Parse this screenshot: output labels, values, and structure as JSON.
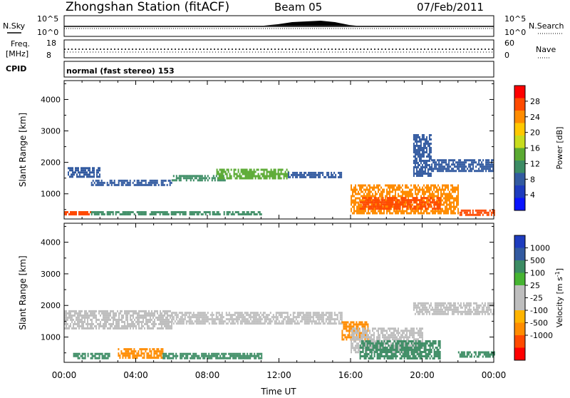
{
  "header": {
    "title": "Zhongshan Station (fitACF)",
    "beam": "Beam 05",
    "date": "07/Feb/2011"
  },
  "strip_labels": {
    "nsky": "N.Sky",
    "nsearch": "N.Search",
    "freq": "Freq.",
    "freq_unit": "[MHz]",
    "nave": "Nave",
    "cpid": "CPID",
    "cpid_text": "normal (fast stereo) 153",
    "noise_left_ticks": [
      "10^5",
      "10^0"
    ],
    "noise_right_ticks": [
      "10^5",
      "10^0"
    ],
    "freq_left_ticks": [
      "18",
      "8"
    ],
    "nave_right_ticks": [
      "60",
      "0"
    ]
  },
  "colorbars": {
    "power": {
      "label": "Power [dB]",
      "ticks": [
        "28",
        "24",
        "20",
        "16",
        "12",
        "8",
        "4"
      ],
      "colors": [
        "#ff0000",
        "#ff4a00",
        "#ff8c00",
        "#ffc800",
        "#c8dc1e",
        "#5aaa32",
        "#3c8c64",
        "#325aa0",
        "#1e3cbe",
        "#0a14ff"
      ]
    },
    "velocity": {
      "label": "Velocity [m s",
      "label_sup": "-1",
      "label_end": "]",
      "ticks": [
        "1000",
        "500",
        "100",
        "25",
        "-25",
        "-100",
        "-500",
        "-1000"
      ],
      "colors": [
        "#1e3cbe",
        "#325aa0",
        "#3c8c64",
        "#46b432",
        "#bebebe",
        "#bebebe",
        "#ffb400",
        "#ff8c00",
        "#ff4a00",
        "#ff0000"
      ]
    }
  },
  "chart_data": [
    {
      "type": "heatmap",
      "panel": "power",
      "ylabel": "Slant Range [km]",
      "xlabel": "",
      "ylim": [
        200,
        4600
      ],
      "yticks": [
        "1000",
        "2000",
        "3000",
        "4000"
      ],
      "xlim_hours": [
        0,
        24
      ],
      "echo_regions": [
        {
          "t0": 0.2,
          "t1": 2.0,
          "r0": 1550,
          "r1": 1850,
          "color": "#325aa0"
        },
        {
          "t0": 1.5,
          "t1": 6.0,
          "r0": 1250,
          "r1": 1450,
          "color": "#325aa0"
        },
        {
          "t0": 6.0,
          "t1": 9.0,
          "r0": 1400,
          "r1": 1600,
          "color": "#3c8c64"
        },
        {
          "t0": 8.5,
          "t1": 12.5,
          "r0": 1500,
          "r1": 1800,
          "color": "#5aaa32"
        },
        {
          "t0": 12.5,
          "t1": 15.5,
          "r0": 1550,
          "r1": 1700,
          "color": "#325aa0"
        },
        {
          "t0": 0.0,
          "t1": 1.5,
          "r0": 350,
          "r1": 450,
          "color": "#ff4a00"
        },
        {
          "t0": 1.5,
          "t1": 11.0,
          "r0": 350,
          "r1": 450,
          "color": "#3c8c64"
        },
        {
          "t0": 16.0,
          "t1": 22.0,
          "r0": 400,
          "r1": 1300,
          "color": "#ff8c00"
        },
        {
          "t0": 16.5,
          "t1": 21.0,
          "r0": 550,
          "r1": 900,
          "color": "#ff4a00"
        },
        {
          "t0": 19.5,
          "t1": 20.5,
          "r0": 1600,
          "r1": 2900,
          "color": "#325aa0"
        },
        {
          "t0": 20.5,
          "t1": 24.0,
          "r0": 1700,
          "r1": 2100,
          "color": "#325aa0"
        },
        {
          "t0": 22.0,
          "t1": 24.0,
          "r0": 350,
          "r1": 500,
          "color": "#ff4a00"
        }
      ]
    },
    {
      "type": "heatmap",
      "panel": "velocity",
      "ylabel": "Slant Range [km]",
      "xlabel": "Time UT",
      "ylim": [
        200,
        4600
      ],
      "yticks": [
        "1000",
        "2000",
        "3000",
        "4000"
      ],
      "xticks": [
        "00:00",
        "04:00",
        "08:00",
        "12:00",
        "16:00",
        "20:00",
        "00:00"
      ],
      "xlim_hours": [
        0,
        24
      ],
      "echo_regions": [
        {
          "t0": 0.0,
          "t1": 6.0,
          "r0": 1250,
          "r1": 1850,
          "color": "#bebebe"
        },
        {
          "t0": 6.0,
          "t1": 15.5,
          "r0": 1450,
          "r1": 1800,
          "color": "#bebebe"
        },
        {
          "t0": 0.5,
          "t1": 2.5,
          "r0": 300,
          "r1": 500,
          "color": "#3c8c64"
        },
        {
          "t0": 3.0,
          "t1": 5.5,
          "r0": 350,
          "r1": 650,
          "color": "#ff8c00"
        },
        {
          "t0": 5.5,
          "t1": 11.0,
          "r0": 300,
          "r1": 500,
          "color": "#3c8c64"
        },
        {
          "t0": 15.5,
          "t1": 17.0,
          "r0": 900,
          "r1": 1500,
          "color": "#ff8c00"
        },
        {
          "t0": 16.0,
          "t1": 20.0,
          "r0": 500,
          "r1": 1300,
          "color": "#bebebe"
        },
        {
          "t0": 16.5,
          "t1": 21.0,
          "r0": 350,
          "r1": 900,
          "color": "#3c8c64"
        },
        {
          "t0": 19.5,
          "t1": 24.0,
          "r0": 1700,
          "r1": 2100,
          "color": "#bebebe"
        },
        {
          "t0": 22.0,
          "t1": 24.0,
          "r0": 350,
          "r1": 550,
          "color": "#3c8c64"
        }
      ]
    }
  ]
}
